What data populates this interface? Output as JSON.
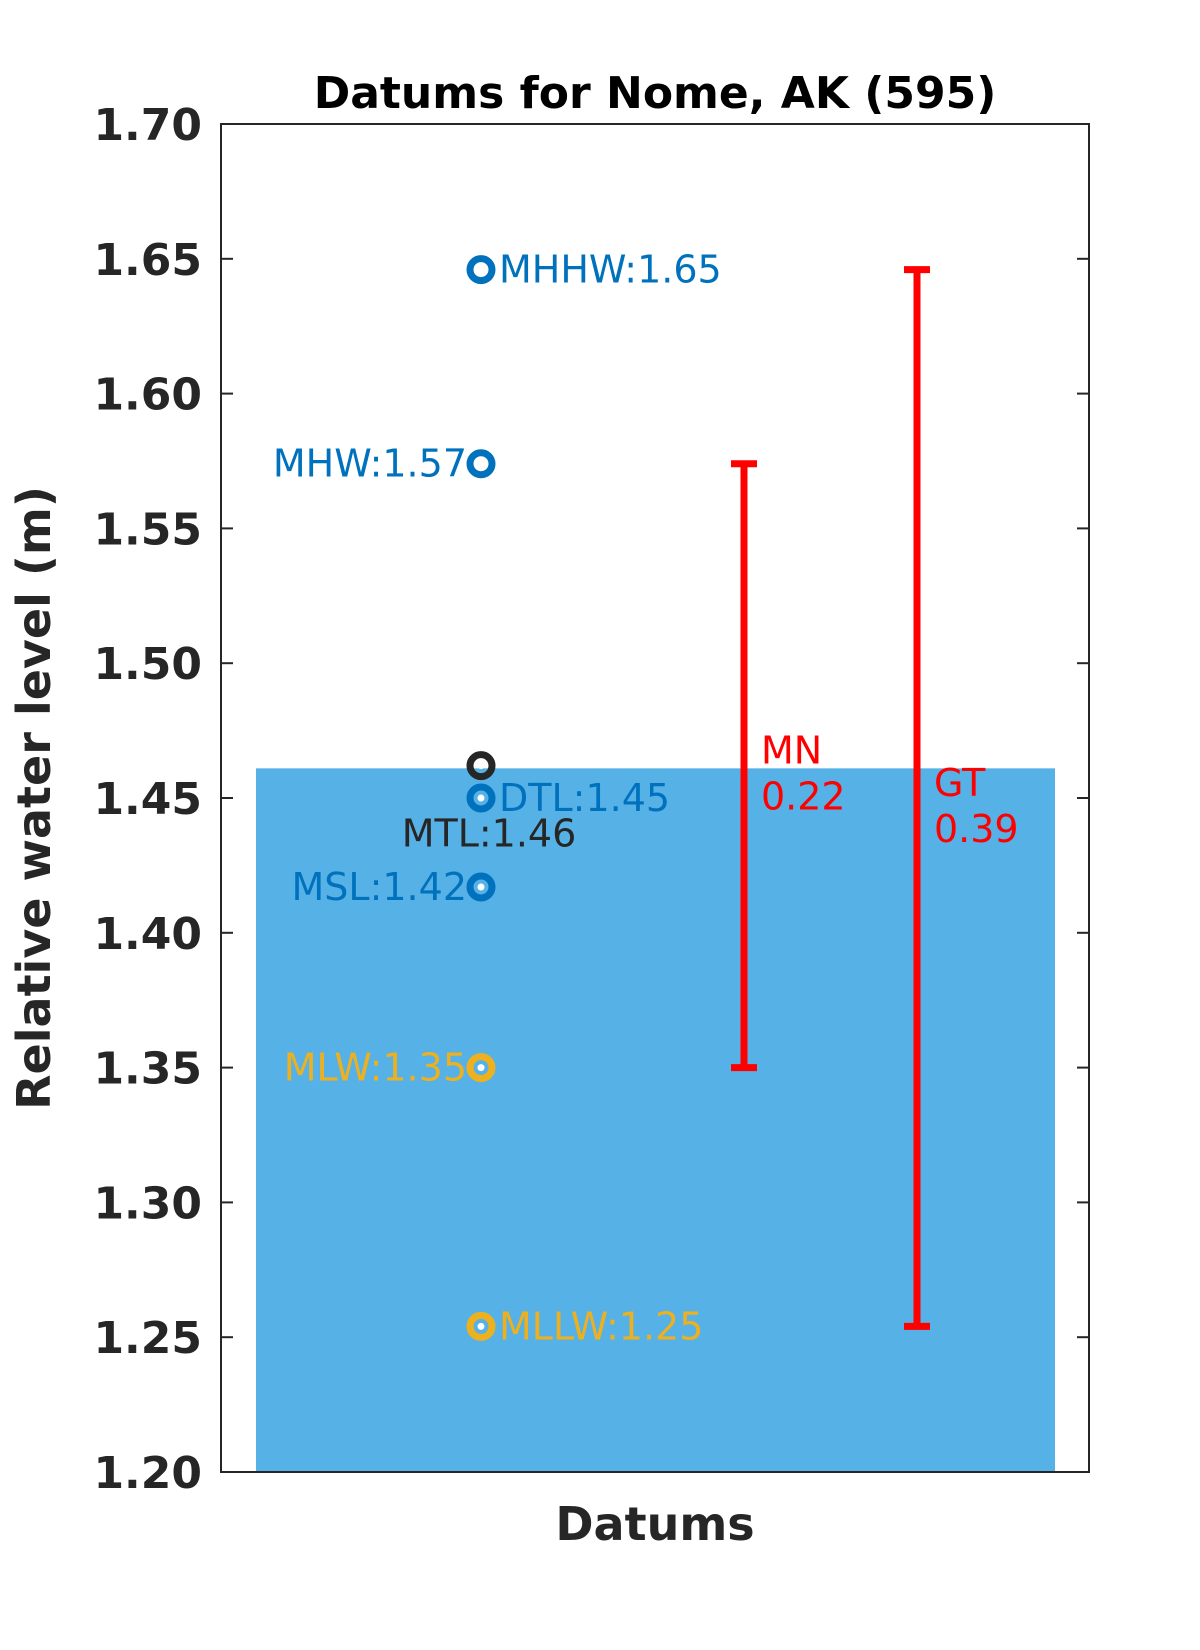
{
  "chart_data": {
    "type": "scatter",
    "title": "Datums for Nome, AK (595)",
    "xlabel": "Datums",
    "ylabel": "Relative water level (m)",
    "ylim": [
      1.2,
      1.7
    ],
    "yticks": [
      {
        "value": 1.2,
        "label": "1.20"
      },
      {
        "value": 1.25,
        "label": "1.25"
      },
      {
        "value": 1.3,
        "label": "1.30"
      },
      {
        "value": 1.35,
        "label": "1.35"
      },
      {
        "value": 1.4,
        "label": "1.40"
      },
      {
        "value": 1.45,
        "label": "1.45"
      },
      {
        "value": 1.5,
        "label": "1.50"
      },
      {
        "value": 1.55,
        "label": "1.55"
      },
      {
        "value": 1.6,
        "label": "1.60"
      },
      {
        "value": 1.65,
        "label": "1.65"
      },
      {
        "value": 1.7,
        "label": "1.70"
      }
    ],
    "grid": false,
    "water_fill": {
      "top": 1.461,
      "color": "#56B1E6"
    },
    "datums": [
      {
        "name": "MHHW",
        "label": "MHHW:1.65",
        "value": 1.646,
        "color": "#0072BD",
        "label_side": "right"
      },
      {
        "name": "MHW",
        "label": "MHW:1.57",
        "value": 1.574,
        "color": "#0072BD",
        "label_side": "left"
      },
      {
        "name": "MTL",
        "label": "MTL:1.46",
        "value": 1.462,
        "color": "#262626",
        "label_side": "below"
      },
      {
        "name": "DTL",
        "label": "DTL:1.45",
        "value": 1.45,
        "color": "#0072BD",
        "label_side": "right"
      },
      {
        "name": "MSL",
        "label": "MSL:1.42",
        "value": 1.417,
        "color": "#0072BD",
        "label_side": "left"
      },
      {
        "name": "MLW",
        "label": "MLW:1.35",
        "value": 1.35,
        "color": "#EDB120",
        "label_side": "left"
      },
      {
        "name": "MLLW",
        "label": "MLLW:1.25",
        "value": 1.254,
        "color": "#EDB120",
        "label_side": "right"
      }
    ],
    "ranges": [
      {
        "name": "MN",
        "label_line1": "MN",
        "label_line2": "0.22",
        "low": 1.35,
        "high": 1.574,
        "color": "#FF0000"
      },
      {
        "name": "GT",
        "label_line1": "GT",
        "label_line2": "0.39",
        "low": 1.254,
        "high": 1.646,
        "color": "#FF0000"
      }
    ]
  }
}
